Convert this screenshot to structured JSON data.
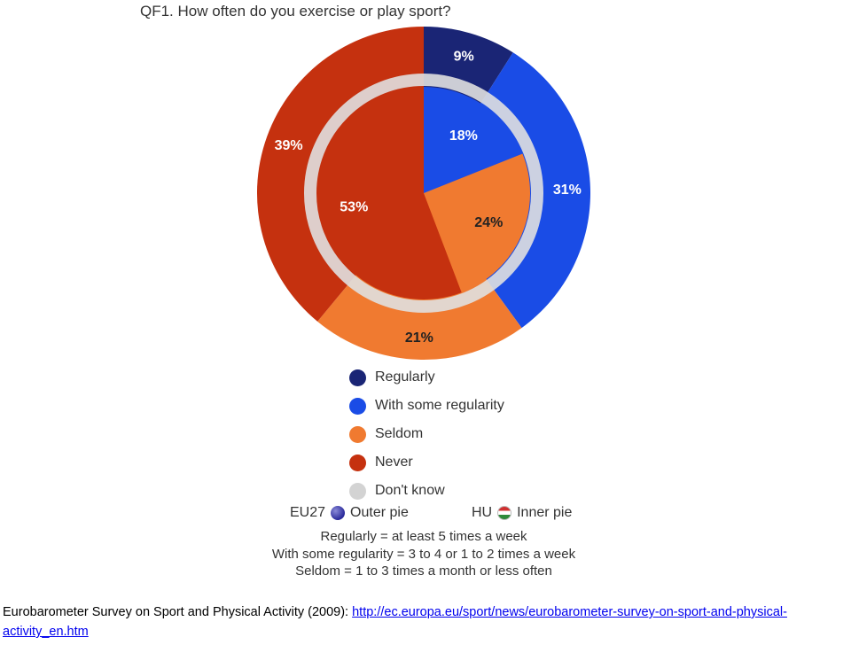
{
  "title": "QF1. How often do you exercise or play sport?",
  "chart_data": {
    "type": "pie",
    "title": "QF1. How often do you exercise or play sport?",
    "categories": [
      "Regularly",
      "With some regularity",
      "Seldom",
      "Never",
      "Don't know"
    ],
    "series": [
      {
        "name": "EU27",
        "values": [
          9,
          31,
          21,
          39,
          0
        ],
        "labels": [
          "9%",
          "31%",
          "21%",
          "39%",
          ""
        ]
      },
      {
        "name": "HU",
        "values": [
          0,
          18,
          24,
          53,
          0
        ],
        "labels": [
          "",
          "18%",
          "24%",
          "53%",
          ""
        ]
      }
    ],
    "legend": "bottom"
  },
  "colors": {
    "Regularly": "#1a2575",
    "With some regularity": "#1a4ce6",
    "Seldom": "#f07a30",
    "Never": "#c5310f",
    "Don't know": "#d3d3d3"
  },
  "legend": {
    "items": [
      {
        "label": "Regularly",
        "color": "#1a2575"
      },
      {
        "label": "With some regularity",
        "color": "#1a4ce6"
      },
      {
        "label": "Seldom",
        "color": "#f07a30"
      },
      {
        "label": "Never",
        "color": "#c5310f"
      },
      {
        "label": "Don't know",
        "color": "#d3d3d3"
      }
    ]
  },
  "pie_key": {
    "eu_code": "EU27",
    "eu_text": "Outer pie",
    "eu_icon": "eu-flag-icon",
    "hu_code": "HU",
    "hu_text": "Inner pie",
    "hu_icon": "hungary-flag-icon"
  },
  "definitions": [
    "Regularly = at least 5 times a week",
    "With some regularity = 3 to 4 or 1 to 2 times a week",
    "Seldom = 1 to 3 times a month or less often"
  ],
  "source": {
    "text": "Eurobarometer Survey on Sport and Physical Activity (2009): ",
    "link": "http://ec.europa.eu/sport/news/eurobarometer-survey-on-sport-and-physical-activity_en.htm"
  }
}
